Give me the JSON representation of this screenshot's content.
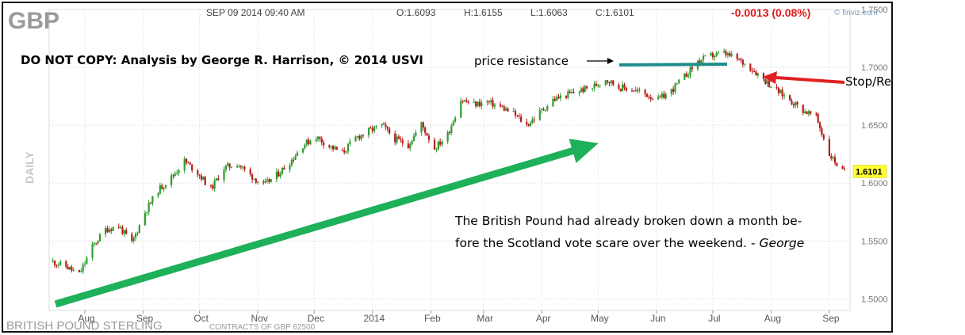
{
  "chart_data": {
    "type": "candlestick",
    "symbol": "GBP",
    "timestamp": "SEP 09 2014 09:40 AM",
    "ohlc": {
      "open_label": "O:1.6093",
      "high_label": "H:1.6155",
      "low_label": "L:1.6063",
      "close_label": "C:1.6101"
    },
    "change_label": "-0.0013 (0.08%)",
    "source_label": "© finviz.com",
    "period_label": "DAILY",
    "instrument_label": "BRITISH POUND STERLING",
    "contracts_label": "CONTRACTS OF GBP 62500",
    "last_price_label": "1.6101",
    "ylim": [
      1.49,
      1.75
    ],
    "y_ticks": [
      "1.7500",
      "1.7000",
      "1.6500",
      "1.6000",
      "1.5500",
      "1.5000"
    ],
    "y_tick_values": [
      1.75,
      1.7,
      1.65,
      1.6,
      1.55,
      1.5
    ],
    "x_tick_labels": [
      "Aug",
      "Sep",
      "Oct",
      "Nov",
      "Dec",
      "2014",
      "Feb",
      "Mar",
      "Apr",
      "May",
      "Jun",
      "Jul",
      "Aug",
      "Sep"
    ],
    "x_tick_dates": [
      "2013-08-01",
      "2013-09-01",
      "2013-10-01",
      "2013-11-01",
      "2013-12-01",
      "2014-01-01",
      "2014-02-01",
      "2014-03-01",
      "2014-04-01",
      "2014-05-01",
      "2014-06-01",
      "2014-07-01",
      "2014-08-01",
      "2014-09-01"
    ],
    "series": [
      {
        "dates": [
          "2013-07-15",
          "2013-07-22",
          "2013-07-29",
          "2013-08-05",
          "2013-08-12",
          "2013-08-19",
          "2013-08-26",
          "2013-09-02",
          "2013-09-09",
          "2013-09-16",
          "2013-09-23",
          "2013-09-30",
          "2013-10-07",
          "2013-10-14",
          "2013-10-21",
          "2013-10-28",
          "2013-11-04",
          "2013-11-11",
          "2013-11-18",
          "2013-11-25",
          "2013-12-02",
          "2013-12-09",
          "2013-12-16",
          "2013-12-23",
          "2013-12-30",
          "2014-01-06",
          "2014-01-13",
          "2014-01-20",
          "2014-01-27",
          "2014-02-03",
          "2014-02-10",
          "2014-02-17",
          "2014-02-24",
          "2014-03-03",
          "2014-03-10",
          "2014-03-17",
          "2014-03-24",
          "2014-03-31",
          "2014-04-07",
          "2014-04-14",
          "2014-04-21",
          "2014-04-28",
          "2014-05-05",
          "2014-05-12",
          "2014-05-19",
          "2014-05-26",
          "2014-06-02",
          "2014-06-09",
          "2014-06-16",
          "2014-06-23",
          "2014-06-30",
          "2014-07-07",
          "2014-07-14",
          "2014-07-21",
          "2014-07-28",
          "2014-08-04",
          "2014-08-11",
          "2014-08-18",
          "2014-08-25",
          "2014-09-01",
          "2014-09-08"
        ],
        "close": [
          1.532,
          1.528,
          1.521,
          1.545,
          1.56,
          1.563,
          1.548,
          1.575,
          1.594,
          1.605,
          1.619,
          1.609,
          1.595,
          1.613,
          1.617,
          1.607,
          1.598,
          1.607,
          1.618,
          1.633,
          1.64,
          1.632,
          1.626,
          1.639,
          1.645,
          1.65,
          1.638,
          1.633,
          1.651,
          1.63,
          1.642,
          1.672,
          1.668,
          1.67,
          1.666,
          1.66,
          1.65,
          1.661,
          1.672,
          1.676,
          1.68,
          1.683,
          1.69,
          1.683,
          1.681,
          1.677,
          1.672,
          1.68,
          1.692,
          1.705,
          1.71,
          1.712,
          1.707,
          1.7,
          1.69,
          1.68,
          1.672,
          1.663,
          1.657,
          1.625,
          1.61
        ]
      }
    ],
    "annotations": {
      "copyright": "DO NOT COPY: Analysis by George R. Harrison, © 2014 USVI",
      "resistance": "price resistance",
      "stop_reverse": "Stop/Reverse",
      "comment_line1": "The British Pound had already broken down a month be-",
      "comment_line2_prefix": "fore the Scotland vote scare over the weekend. - ",
      "comment_author": "George"
    },
    "colors": {
      "up": "#2e9e2e",
      "down": "#b81c1c",
      "trend_arrow": "#1fb05a",
      "resistance_line": "#1e8c8c",
      "stop_arrow": "#e02020",
      "change_text": "#e01818",
      "last_price_box": "#ffff33"
    }
  }
}
